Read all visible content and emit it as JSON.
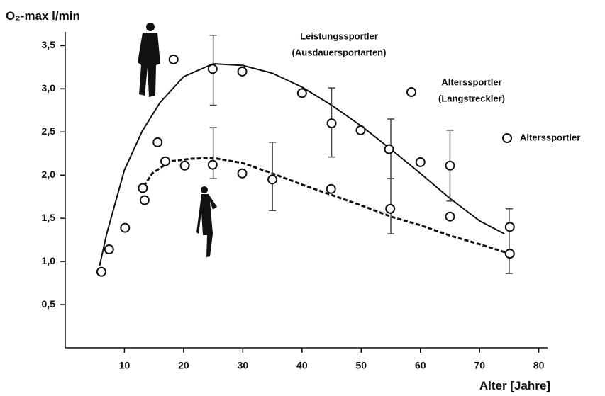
{
  "chart_data": {
    "type": "scatter",
    "y_label": "O₂-max l/min",
    "x_label": "Alter [Jahre]",
    "xlim": [
      0,
      81
    ],
    "ylim": [
      0,
      3.7
    ],
    "xticks": [
      10,
      20,
      30,
      40,
      50,
      60,
      70,
      80
    ],
    "yticks": [
      {
        "value": 0.5,
        "label": "0,5"
      },
      {
        "value": 1.0,
        "label": "1,0"
      },
      {
        "value": 1.5,
        "label": "1,5"
      },
      {
        "value": 2.0,
        "label": "2,0"
      },
      {
        "value": 2.5,
        "label": "2,5"
      },
      {
        "value": 3.0,
        "label": "3,0"
      },
      {
        "value": 3.5,
        "label": "3,5"
      }
    ],
    "color": "#111111",
    "points": {
      "x": [
        6.1,
        7.4,
        10.1,
        13.1,
        13.4,
        15.6,
        16.9,
        18.3,
        20.2,
        24.9,
        24.9,
        29.9,
        29.9,
        35.0,
        40.0,
        44.9,
        45.0,
        49.9,
        54.7,
        54.9,
        60.0,
        65.0,
        65.0,
        75.1,
        75.1
      ],
      "y": [
        0.88,
        1.14,
        1.39,
        1.85,
        1.71,
        2.38,
        2.16,
        3.34,
        2.11,
        3.23,
        2.12,
        3.2,
        2.02,
        1.95,
        2.95,
        1.84,
        2.6,
        2.52,
        2.3,
        1.61,
        2.15,
        2.11,
        1.52,
        1.4,
        1.09
      ]
    },
    "error_bars": {
      "x": [
        25,
        25,
        35,
        45,
        55,
        55,
        65,
        75
      ],
      "low": [
        2.81,
        1.96,
        1.59,
        2.21,
        1.96,
        1.32,
        1.7,
        0.86
      ],
      "high": [
        3.62,
        2.55,
        2.38,
        3.01,
        2.65,
        1.96,
        2.52,
        1.61
      ]
    },
    "curves": [
      {
        "style": "solid",
        "x": [
          5.8,
          7,
          10,
          13,
          16,
          20,
          25,
          30,
          35,
          40,
          45,
          50,
          55,
          60,
          65,
          70,
          74.2
        ],
        "y": [
          0.95,
          1.32,
          2.06,
          2.51,
          2.84,
          3.14,
          3.29,
          3.27,
          3.18,
          3.02,
          2.81,
          2.57,
          2.3,
          2.02,
          1.73,
          1.47,
          1.32
        ]
      },
      {
        "style": "dashed",
        "x": [
          12.7,
          14.7,
          17.7,
          21.3,
          24.9,
          30,
          35,
          40,
          45,
          50,
          55,
          60,
          65,
          70,
          75.1
        ],
        "y": [
          1.81,
          2.02,
          2.16,
          2.19,
          2.2,
          2.14,
          2.02,
          1.89,
          1.77,
          1.65,
          1.52,
          1.42,
          1.3,
          1.2,
          1.09
        ]
      }
    ],
    "annotations": [
      "Leistungssportler",
      "(Ausdauersportarten)",
      "Alterssportler",
      "(Langstreckler)",
      "Alterssportler"
    ]
  }
}
